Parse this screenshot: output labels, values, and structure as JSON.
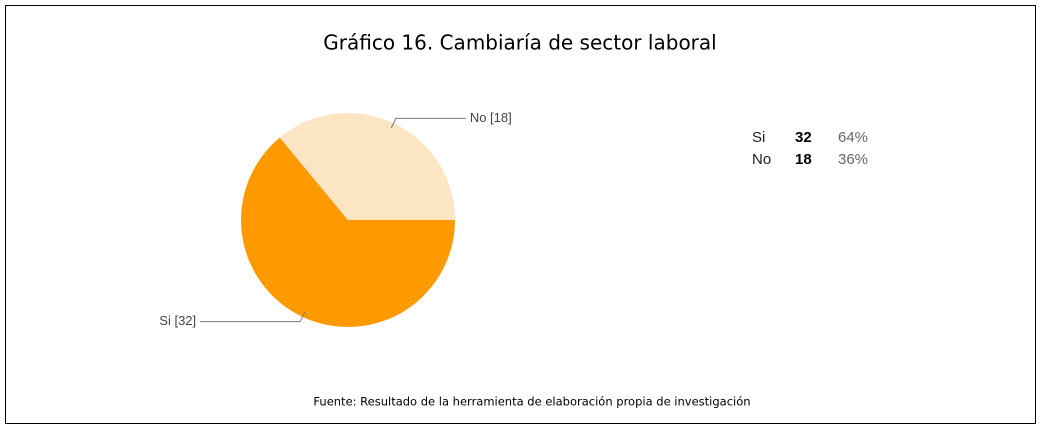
{
  "chart_data": {
    "type": "pie",
    "title": "Gráfico 16. Cambiaría de sector laboral",
    "categories": [
      "Si",
      "No"
    ],
    "values": [
      32,
      18
    ],
    "value_labels": [
      "Si [32]",
      "No [18]"
    ],
    "colors": [
      "#ff9900",
      "#fce5c3"
    ],
    "percentages": [
      64,
      36
    ],
    "percentage_labels": [
      "64%",
      "36%"
    ],
    "source": "Fuente: Resultado de la herramienta de elaboración propia de investigación"
  }
}
